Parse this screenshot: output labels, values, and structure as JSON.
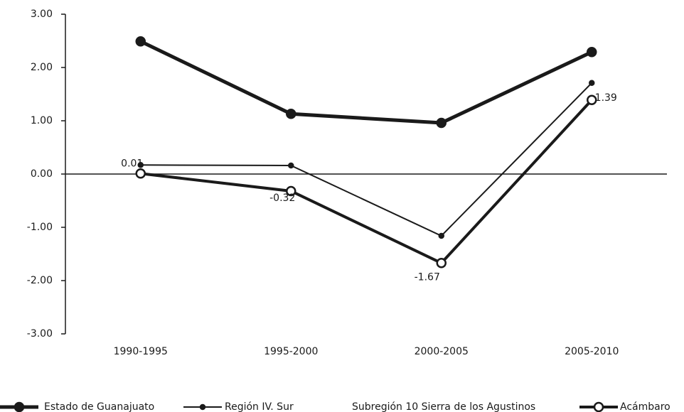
{
  "chart_data": {
    "type": "line",
    "categories": [
      "1990-1995",
      "1995-2000",
      "2000-2005",
      "2005-2010"
    ],
    "series": [
      {
        "name": "Estado de Guanajuato",
        "color": "#1a1a1a",
        "values": [
          2.49,
          1.13,
          0.96,
          2.29
        ]
      },
      {
        "name": "Región IV. Sur",
        "color": "#1a1a1a",
        "values": [
          0.17,
          0.16,
          -1.16,
          1.71
        ]
      },
      {
        "name": "Subregión 10 Sierra de los Agustinos",
        "color": "#ffffff",
        "values": [
          null,
          null,
          null,
          null
        ]
      },
      {
        "name": "Acámbaro",
        "color": "#1a1a1a",
        "values": [
          0.01,
          -0.32,
          -1.67,
          1.39
        ],
        "value_labels": [
          "0.01",
          "-0.32",
          "-1.67",
          "1.39"
        ]
      }
    ],
    "ylim": [
      -3,
      3
    ],
    "yticks": [
      {
        "value": -3,
        "label": "-3.00"
      },
      {
        "value": -2,
        "label": "-2.00"
      },
      {
        "value": -1,
        "label": "-1.00"
      },
      {
        "value": 0,
        "label": "0.00"
      },
      {
        "value": 1,
        "label": "1.00"
      },
      {
        "value": 2,
        "label": "2.00"
      },
      {
        "value": 3,
        "label": "3.00"
      }
    ],
    "legend": "bottom"
  }
}
